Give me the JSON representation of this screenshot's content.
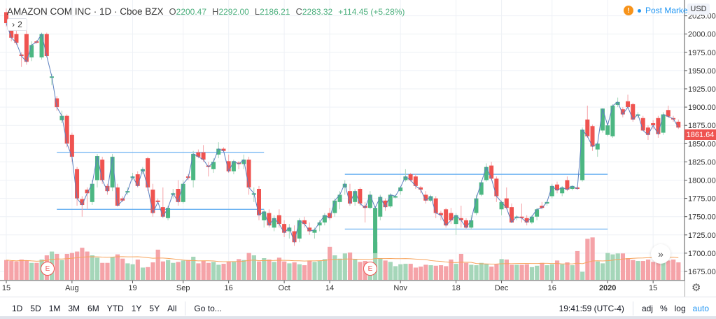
{
  "header": {
    "symbol": "AMAZON COM INC · 1D · Cboe BZX",
    "o_label": "O",
    "o": "2200.47",
    "h_label": "H",
    "h": "2292.00",
    "l_label": "L",
    "l": "2186.21",
    "c_label": "C",
    "c": "2283.32",
    "change": "+114.45 (+5.28%)"
  },
  "legend_toggle": {
    "icon": "chevron-right-icon",
    "count": "2"
  },
  "status": {
    "warning": "!",
    "label": "Post Market"
  },
  "currency": "USD",
  "last_price": "1861.64",
  "earnings_label": "E",
  "scroll_icon": "»",
  "colors": {
    "up": "#26a69a",
    "up_candle": "#4cb782",
    "down": "#ef5350",
    "up_vol": "#a5d6b9",
    "down_vol": "#f5a3a8",
    "close_line": "#5b7fbf",
    "vol_ma": "#f7a35c",
    "level_line": "#5aa9f0"
  },
  "chart_data": {
    "type": "candlestick",
    "ylim": [
      1665,
      2035
    ],
    "price_ticks": [
      2025,
      2000,
      1975,
      1950,
      1925,
      1900,
      1875,
      1850,
      1825,
      1800,
      1775,
      1750,
      1725,
      1700,
      1675
    ],
    "date_ticks": [
      {
        "label": "15",
        "i": 0
      },
      {
        "label": "Aug",
        "i": 13
      },
      {
        "label": "19",
        "i": 25
      },
      {
        "label": "Sep",
        "i": 35
      },
      {
        "label": "16",
        "i": 44
      },
      {
        "label": "Oct",
        "i": 55
      },
      {
        "label": "14",
        "i": 64
      },
      {
        "label": "Nov",
        "i": 78
      },
      {
        "label": "18",
        "i": 89
      },
      {
        "label": "Dec",
        "i": 98
      },
      {
        "label": "16",
        "i": 108
      },
      {
        "label": "2020",
        "i": 119
      },
      {
        "label": "15",
        "i": 128
      }
    ],
    "earnings_at": [
      8,
      72
    ],
    "levels": [
      {
        "price": 1838,
        "from": 10,
        "to": 51
      },
      {
        "price": 1760,
        "from": 10,
        "to": 51
      },
      {
        "price": 1808,
        "from": 67,
        "to": 119
      },
      {
        "price": 1733,
        "from": 67,
        "to": 119
      }
    ],
    "ohlc": [
      [
        2030,
        2035,
        2010,
        2015
      ],
      [
        2015,
        2020,
        1990,
        1995
      ],
      [
        2000,
        2005,
        1985,
        1988
      ],
      [
        1972,
        1975,
        1955,
        1970
      ],
      [
        2000,
        2005,
        1958,
        1962
      ],
      [
        1968,
        1990,
        1963,
        1985
      ],
      [
        1990,
        1992,
        1987,
        1989
      ],
      [
        1968,
        2002,
        1965,
        2000
      ],
      [
        2000,
        2002,
        1968,
        1970
      ],
      [
        1942,
        1945,
        1930,
        1942
      ],
      [
        1912,
        1915,
        1895,
        1900
      ],
      [
        1882,
        1895,
        1878,
        1888
      ],
      [
        1888,
        1890,
        1845,
        1850
      ],
      [
        1862,
        1865,
        1825,
        1832
      ],
      [
        1815,
        1818,
        1765,
        1775
      ],
      [
        1774,
        1778,
        1750,
        1766
      ],
      [
        1787,
        1790,
        1760,
        1782
      ],
      [
        1770,
        1800,
        1766,
        1795
      ],
      [
        1800,
        1836,
        1790,
        1833
      ],
      [
        1828,
        1832,
        1795,
        1800
      ],
      [
        1792,
        1795,
        1780,
        1785
      ],
      [
        1790,
        1836,
        1785,
        1832
      ],
      [
        1790,
        1795,
        1764,
        1765
      ],
      [
        1775,
        1778,
        1770,
        1772
      ],
      [
        1785,
        1790,
        1780,
        1785
      ],
      [
        1803,
        1810,
        1800,
        1805
      ],
      [
        1808,
        1812,
        1790,
        1792
      ],
      [
        1812,
        1818,
        1808,
        1815
      ],
      [
        1830,
        1832,
        1785,
        1790
      ],
      [
        1787,
        1795,
        1750,
        1755
      ],
      [
        1772,
        1775,
        1768,
        1770
      ],
      [
        1763,
        1790,
        1748,
        1750
      ],
      [
        1748,
        1765,
        1745,
        1762
      ],
      [
        1780,
        1788,
        1775,
        1782
      ],
      [
        1788,
        1800,
        1765,
        1770
      ],
      [
        1770,
        1800,
        1768,
        1795
      ],
      [
        1805,
        1808,
        1800,
        1803
      ],
      [
        1800,
        1840,
        1790,
        1836
      ],
      [
        1838,
        1842,
        1830,
        1832
      ],
      [
        1838,
        1848,
        1825,
        1828
      ],
      [
        1820,
        1825,
        1805,
        1818
      ],
      [
        1815,
        1830,
        1810,
        1825
      ],
      [
        1835,
        1852,
        1830,
        1843
      ],
      [
        1843,
        1845,
        1838,
        1840
      ],
      [
        1826,
        1835,
        1810,
        1812
      ],
      [
        1812,
        1828,
        1808,
        1826
      ],
      [
        1824,
        1826,
        1815,
        1822
      ],
      [
        1822,
        1835,
        1815,
        1828
      ],
      [
        1828,
        1832,
        1780,
        1790
      ],
      [
        1780,
        1790,
        1770,
        1782
      ],
      [
        1788,
        1792,
        1745,
        1752
      ],
      [
        1745,
        1760,
        1735,
        1757
      ],
      [
        1755,
        1760,
        1735,
        1738
      ],
      [
        1735,
        1752,
        1730,
        1748
      ],
      [
        1752,
        1760,
        1735,
        1740
      ],
      [
        1740,
        1745,
        1722,
        1728
      ],
      [
        1730,
        1740,
        1720,
        1735
      ],
      [
        1730,
        1738,
        1710,
        1715
      ],
      [
        1720,
        1748,
        1715,
        1745
      ],
      [
        1745,
        1750,
        1735,
        1740
      ],
      [
        1735,
        1742,
        1725,
        1730
      ],
      [
        1728,
        1735,
        1720,
        1732
      ],
      [
        1738,
        1745,
        1730,
        1742
      ],
      [
        1742,
        1755,
        1738,
        1752
      ],
      [
        1755,
        1762,
        1745,
        1748
      ],
      [
        1755,
        1775,
        1750,
        1772
      ],
      [
        1770,
        1785,
        1760,
        1780
      ],
      [
        1790,
        1800,
        1780,
        1795
      ],
      [
        1785,
        1795,
        1765,
        1768
      ],
      [
        1770,
        1788,
        1765,
        1785
      ],
      [
        1788,
        1790,
        1765,
        1768
      ],
      [
        1765,
        1770,
        1742,
        1762
      ],
      [
        1762,
        1785,
        1760,
        1780
      ],
      [
        1700,
        1765,
        1698,
        1762
      ],
      [
        1750,
        1780,
        1745,
        1777
      ],
      [
        1772,
        1775,
        1758,
        1763
      ],
      [
        1764,
        1782,
        1762,
        1780
      ],
      [
        1778,
        1780,
        1775,
        1778
      ],
      [
        1785,
        1792,
        1780,
        1790
      ],
      [
        1800,
        1815,
        1798,
        1805
      ],
      [
        1808,
        1810,
        1798,
        1800
      ],
      [
        1805,
        1808,
        1788,
        1792
      ],
      [
        1790,
        1792,
        1782,
        1787
      ],
      [
        1780,
        1785,
        1768,
        1772
      ],
      [
        1772,
        1780,
        1770,
        1778
      ],
      [
        1775,
        1778,
        1748,
        1755
      ],
      [
        1755,
        1758,
        1745,
        1752
      ],
      [
        1760,
        1762,
        1735,
        1738
      ],
      [
        1755,
        1762,
        1740,
        1745
      ],
      [
        1740,
        1755,
        1725,
        1752
      ],
      [
        1748,
        1765,
        1735,
        1745
      ],
      [
        1745,
        1748,
        1733,
        1735
      ],
      [
        1735,
        1752,
        1732,
        1745
      ],
      [
        1755,
        1780,
        1752,
        1775
      ],
      [
        1780,
        1800,
        1778,
        1797
      ],
      [
        1800,
        1823,
        1798,
        1818
      ],
      [
        1820,
        1825,
        1800,
        1802
      ],
      [
        1802,
        1805,
        1770,
        1778
      ],
      [
        1760,
        1772,
        1752,
        1770
      ],
      [
        1775,
        1790,
        1760,
        1762
      ],
      [
        1763,
        1768,
        1742,
        1742
      ],
      [
        1750,
        1752,
        1745,
        1750
      ],
      [
        1750,
        1768,
        1742,
        1748
      ],
      [
        1748,
        1752,
        1738,
        1742
      ],
      [
        1742,
        1752,
        1740,
        1750
      ],
      [
        1750,
        1762,
        1745,
        1760
      ],
      [
        1765,
        1770,
        1760,
        1762
      ],
      [
        1768,
        1772,
        1765,
        1770
      ],
      [
        1778,
        1795,
        1775,
        1792
      ],
      [
        1794,
        1798,
        1782,
        1786
      ],
      [
        1782,
        1792,
        1778,
        1790
      ],
      [
        1800,
        1805,
        1785,
        1787
      ],
      [
        1788,
        1792,
        1786,
        1792
      ],
      [
        1790,
        1792,
        1787,
        1788
      ],
      [
        1800,
        1872,
        1798,
        1869
      ],
      [
        1883,
        1902,
        1858,
        1860
      ],
      [
        1874,
        1876,
        1840,
        1846
      ],
      [
        1842,
        1852,
        1832,
        1850
      ],
      [
        1868,
        1898,
        1865,
        1898
      ],
      [
        1862,
        1878,
        1860,
        1875
      ],
      [
        1860,
        1904,
        1858,
        1902
      ],
      [
        1903,
        1913,
        1900,
        1907
      ],
      [
        1897,
        1900,
        1886,
        1890
      ],
      [
        1908,
        1917,
        1898,
        1900
      ],
      [
        1904,
        1906,
        1880,
        1883
      ],
      [
        1890,
        1893,
        1885,
        1890
      ],
      [
        1885,
        1888,
        1868,
        1868
      ],
      [
        1872,
        1875,
        1855,
        1862
      ],
      [
        1878,
        1882,
        1870,
        1875
      ],
      [
        1885,
        1888,
        1858,
        1863
      ],
      [
        1865,
        1893,
        1862,
        1890
      ],
      [
        1896,
        1902,
        1885,
        1887
      ],
      [
        1885,
        1888,
        1880,
        1884
      ],
      [
        1880,
        1883,
        1870,
        1872
      ]
    ],
    "volume": [
      4.2,
      4,
      3.9,
      4.3,
      4.1,
      3.6,
      3.6,
      4.3,
      5.2,
      6,
      5.5,
      4.2,
      5.5,
      5.7,
      6,
      6.8,
      6,
      5.2,
      4.7,
      3.6,
      3.6,
      4.8,
      5.4,
      4.5,
      3.5,
      3.3,
      4.3,
      2.6,
      2.7,
      3.7,
      6.4,
      3.9,
      4.2,
      3.6,
      3.8,
      4.1,
      4.2,
      4.9,
      3.5,
      4,
      3.6,
      3.8,
      3.2,
      3.4,
      3.8,
      3.8,
      4.4,
      4.2,
      5.7,
      5.2,
      3.9,
      4.6,
      4.3,
      3.8,
      4.7,
      3.9,
      3.5,
      3.7,
      3.3,
      3.1,
      4.1,
      3.8,
      4,
      4.4,
      7,
      5.2,
      4.5,
      5.6,
      5.8,
      4.3,
      3.8,
      4,
      3.4,
      8,
      4.6,
      4.1,
      3.8,
      2.9,
      3.3,
      3.4,
      3.4,
      2.6,
      2.8,
      3.2,
      3.1,
      3,
      3.1,
      2.9,
      4.3,
      3.4,
      5.5,
      3.6,
      3.2,
      3.1,
      3.6,
      3.4,
      2.8,
      3.3,
      4.4,
      4.3,
      3.2,
      3.2,
      3.2,
      3.3,
      2.7,
      3,
      3.6,
      3.1,
      3.3,
      4.1,
      3.3,
      3.7,
      3.1,
      6.1,
      1.7,
      8.7,
      9,
      3.9,
      3.5,
      5.7,
      5.4,
      5.6,
      5.6,
      4.6,
      4.2,
      4,
      4,
      4.3,
      3.8,
      3.7,
      3.9,
      4.1,
      4.3,
      3.7
    ]
  },
  "toolbar": {
    "ranges": [
      "1D",
      "5D",
      "1M",
      "3M",
      "6M",
      "YTD",
      "1Y",
      "5Y",
      "All"
    ],
    "goto": "Go to...",
    "time": "19:41:59 (UTC-4)",
    "adj": "adj",
    "percent": "%",
    "log": "log",
    "auto": "auto"
  }
}
